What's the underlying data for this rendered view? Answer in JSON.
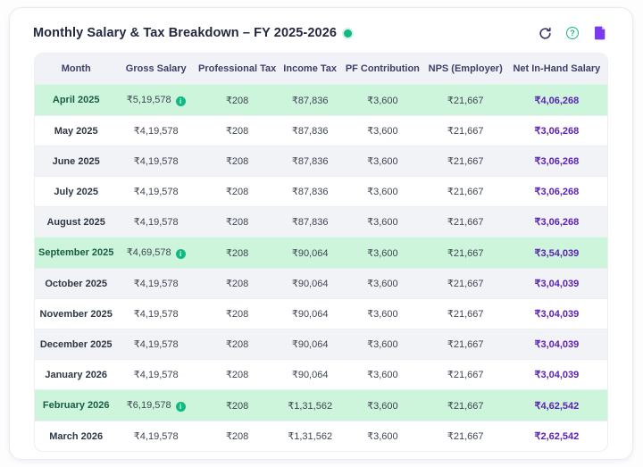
{
  "header": {
    "title": "Monthly Salary & Tax Breakdown – FY 2025-2026",
    "status_dot": "active",
    "icons": [
      {
        "name": "refresh-icon"
      },
      {
        "name": "help-icon",
        "glyph": "?"
      },
      {
        "name": "document-icon"
      }
    ]
  },
  "table": {
    "columns": [
      "Month",
      "Gross Salary",
      "Professional Tax",
      "Income Tax",
      "PF Contribution",
      "NPS (Employer)",
      "Net In-Hand Salary"
    ],
    "badge_glyph": "i",
    "rows": [
      {
        "month": "April 2025",
        "gross": "₹5,19,578",
        "badge": true,
        "professional_tax": "₹208",
        "income_tax": "₹87,836",
        "pf_contribution": "₹3,600",
        "nps_employer": "₹21,667",
        "net_in_hand": "₹4,06,268",
        "bg": "green"
      },
      {
        "month": "May 2025",
        "gross": "₹4,19,578",
        "badge": false,
        "professional_tax": "₹208",
        "income_tax": "₹87,836",
        "pf_contribution": "₹3,600",
        "nps_employer": "₹21,667",
        "net_in_hand": "₹3,06,268",
        "bg": "white"
      },
      {
        "month": "June 2025",
        "gross": "₹4,19,578",
        "badge": false,
        "professional_tax": "₹208",
        "income_tax": "₹87,836",
        "pf_contribution": "₹3,600",
        "nps_employer": "₹21,667",
        "net_in_hand": "₹3,06,268",
        "bg": "gray"
      },
      {
        "month": "July 2025",
        "gross": "₹4,19,578",
        "badge": false,
        "professional_tax": "₹208",
        "income_tax": "₹87,836",
        "pf_contribution": "₹3,600",
        "nps_employer": "₹21,667",
        "net_in_hand": "₹3,06,268",
        "bg": "white"
      },
      {
        "month": "August 2025",
        "gross": "₹4,19,578",
        "badge": false,
        "professional_tax": "₹208",
        "income_tax": "₹87,836",
        "pf_contribution": "₹3,600",
        "nps_employer": "₹21,667",
        "net_in_hand": "₹3,06,268",
        "bg": "gray"
      },
      {
        "month": "September 2025",
        "gross": "₹4,69,578",
        "badge": true,
        "professional_tax": "₹208",
        "income_tax": "₹90,064",
        "pf_contribution": "₹3,600",
        "nps_employer": "₹21,667",
        "net_in_hand": "₹3,54,039",
        "bg": "green"
      },
      {
        "month": "October 2025",
        "gross": "₹4,19,578",
        "badge": false,
        "professional_tax": "₹208",
        "income_tax": "₹90,064",
        "pf_contribution": "₹3,600",
        "nps_employer": "₹21,667",
        "net_in_hand": "₹3,04,039",
        "bg": "gray"
      },
      {
        "month": "November 2025",
        "gross": "₹4,19,578",
        "badge": false,
        "professional_tax": "₹208",
        "income_tax": "₹90,064",
        "pf_contribution": "₹3,600",
        "nps_employer": "₹21,667",
        "net_in_hand": "₹3,04,039",
        "bg": "white"
      },
      {
        "month": "December 2025",
        "gross": "₹4,19,578",
        "badge": false,
        "professional_tax": "₹208",
        "income_tax": "₹90,064",
        "pf_contribution": "₹3,600",
        "nps_employer": "₹21,667",
        "net_in_hand": "₹3,04,039",
        "bg": "gray"
      },
      {
        "month": "January 2026",
        "gross": "₹4,19,578",
        "badge": false,
        "professional_tax": "₹208",
        "income_tax": "₹90,064",
        "pf_contribution": "₹3,600",
        "nps_employer": "₹21,667",
        "net_in_hand": "₹3,04,039",
        "bg": "white"
      },
      {
        "month": "February 2026",
        "gross": "₹6,19,578",
        "badge": true,
        "professional_tax": "₹208",
        "income_tax": "₹1,31,562",
        "pf_contribution": "₹3,600",
        "nps_employer": "₹21,667",
        "net_in_hand": "₹4,62,542",
        "bg": "green"
      },
      {
        "month": "March 2026",
        "gross": "₹4,19,578",
        "badge": false,
        "professional_tax": "₹208",
        "income_tax": "₹1,31,562",
        "pf_contribution": "₹3,600",
        "nps_employer": "₹21,667",
        "net_in_hand": "₹2,62,542",
        "bg": "white"
      }
    ]
  },
  "colors": {
    "accent_green": "#10b981",
    "highlight_row_bg": "#cdf5dc",
    "zebra_row_bg": "#f2f3f6",
    "header_row_bg": "#f1f2f8",
    "header_text": "#3d3f66",
    "net_value_text": "#5b21b6",
    "title_text": "#232840",
    "document_icon": "#7c3aed",
    "refresh_icon": "#3b3566"
  }
}
